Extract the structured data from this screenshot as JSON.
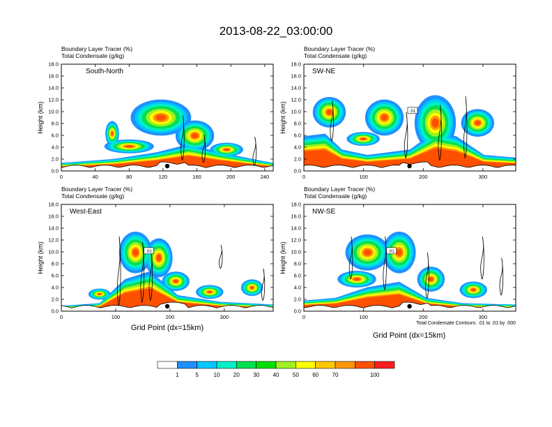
{
  "figure": {
    "title": "2013-08-22_03:00:00",
    "xlabel": "Grid Point (dx=15km)",
    "contour_note": "Total Condensate Contours: .01 to .01 by .000"
  },
  "chart_data": [
    {
      "type": "heatmap",
      "panel_label": "South-North",
      "title_lines": [
        "Boundary Layer Tracer    (%)",
        "Total Condensate    (g/kg)"
      ],
      "ylabel": "Height (km)",
      "xlim": [
        0,
        250
      ],
      "xticks": [
        0,
        40,
        80,
        120,
        160,
        200,
        240
      ],
      "ylim": [
        0,
        18
      ],
      "yticks": [
        0,
        2,
        4,
        6,
        8,
        10,
        12,
        14,
        16,
        18
      ],
      "contour_label": "",
      "marker_x": 125
    },
    {
      "type": "heatmap",
      "panel_label": "SW-NE",
      "title_lines": [
        "Boundary Layer Tracer    (%)",
        "Total Condensate    (g/kg)"
      ],
      "ylabel": "Height (km)",
      "xlim": [
        0,
        355
      ],
      "xticks": [
        0,
        100,
        200,
        300
      ],
      "ylim": [
        0,
        18
      ],
      "yticks": [
        0,
        2,
        4,
        6,
        8,
        10,
        12,
        14,
        16,
        18
      ],
      "contour_label": ".01",
      "marker_x": 177
    },
    {
      "type": "heatmap",
      "panel_label": "West-East",
      "title_lines": [
        "Boundary Layer Tracer    (%)",
        "Total Condensate    (g/kg)"
      ],
      "ylabel": "Height (km)",
      "xlim": [
        0,
        390
      ],
      "xticks": [
        0,
        100,
        200,
        300
      ],
      "ylim": [
        0,
        18
      ],
      "yticks": [
        0,
        2,
        4,
        6,
        8,
        10,
        12,
        14,
        16,
        18
      ],
      "contour_label": ".01",
      "marker_x": 195
    },
    {
      "type": "heatmap",
      "panel_label": "NW-SE",
      "title_lines": [
        "Boundary Layer Tracer    (%)",
        "Total Condensate    (g/kg)"
      ],
      "ylabel": "Height (km)",
      "xlim": [
        0,
        355
      ],
      "xticks": [
        0,
        100,
        200,
        300
      ],
      "ylim": [
        0,
        18
      ],
      "yticks": [
        0,
        2,
        4,
        6,
        8,
        10,
        12,
        14,
        16,
        18
      ],
      "contour_label": ".01",
      "marker_x": 177
    }
  ],
  "colorbar": {
    "labels": [
      "1",
      "5",
      "10",
      "20",
      "30",
      "40",
      "50",
      "60",
      "70",
      "100"
    ],
    "colors": [
      "#ffffff",
      "#1e90ff",
      "#00c8ff",
      "#00f0c8",
      "#00e050",
      "#00e000",
      "#a0f020",
      "#ffff00",
      "#ffc800",
      "#ff9600",
      "#ff5000",
      "#ff1e1e"
    ]
  }
}
